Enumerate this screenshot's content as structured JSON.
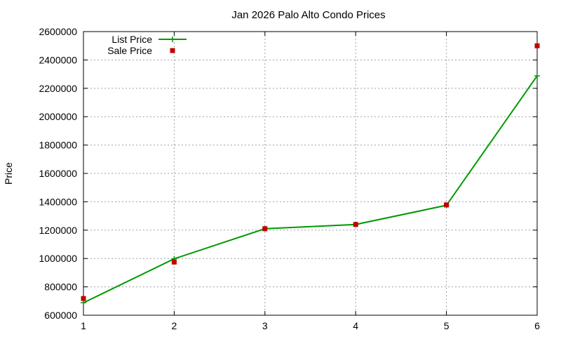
{
  "chart_data": {
    "type": "line",
    "title": "Jan 2026 Palo Alto Condo Prices",
    "xlabel": "",
    "ylabel": "Price",
    "x": [
      1,
      2,
      3,
      4,
      5,
      6
    ],
    "xlim": [
      1,
      6
    ],
    "ylim": [
      600000,
      2600000
    ],
    "x_ticks": [
      "1",
      "2",
      "3",
      "4",
      "5",
      "6"
    ],
    "y_ticks": [
      "600000",
      "800000",
      "1000000",
      "1200000",
      "1400000",
      "1600000",
      "1800000",
      "2000000",
      "2200000",
      "2400000",
      "2600000"
    ],
    "grid": true,
    "legend_position": "top-left",
    "series": [
      {
        "name": "List Price",
        "style": "linespoints",
        "marker": "plus",
        "color": "#009900",
        "values": [
          688000,
          998000,
          1210000,
          1240000,
          1375000,
          2288000
        ]
      },
      {
        "name": "Sale Price",
        "style": "points",
        "marker": "square",
        "color": "#c00000",
        "values": [
          718000,
          975000,
          1210000,
          1240000,
          1378000,
          2500000
        ]
      }
    ]
  }
}
